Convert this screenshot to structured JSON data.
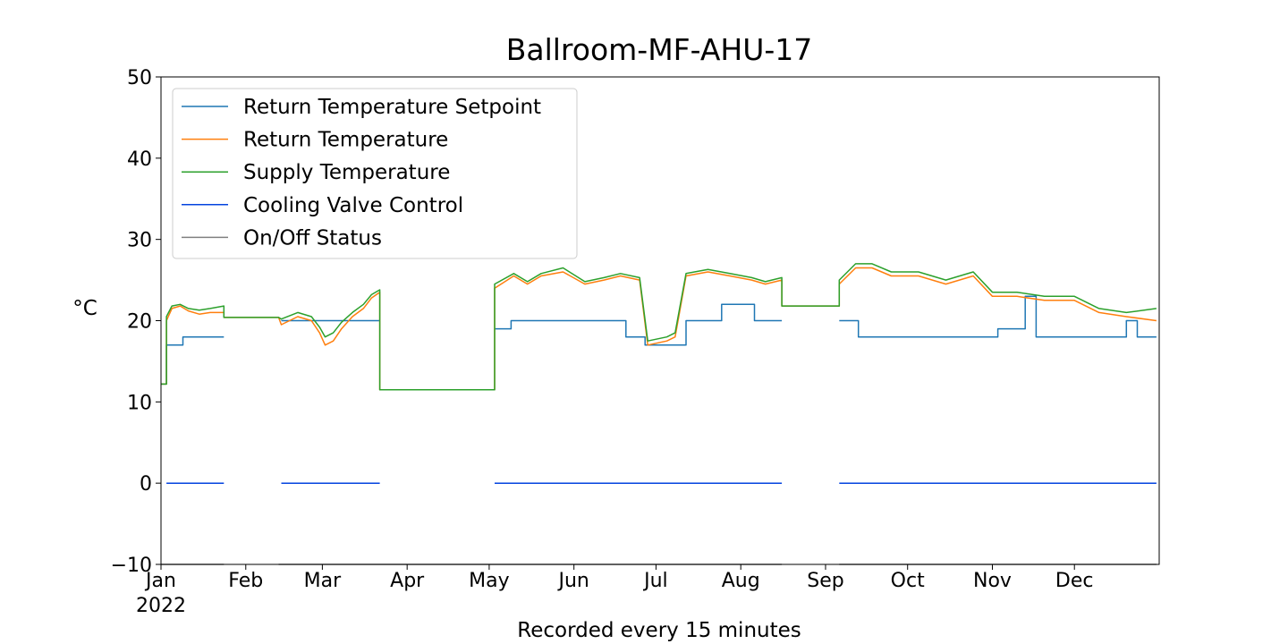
{
  "chart_data": {
    "type": "line",
    "title": "Ballroom-MF-AHU-17",
    "xlabel": "Recorded every 15 minutes",
    "ylabel": "°C",
    "ylim": [
      -10,
      50
    ],
    "xlim": [
      "2022-01-01",
      "2022-12-31"
    ],
    "yticks": [
      -10,
      0,
      10,
      20,
      30,
      40,
      50
    ],
    "xticks": [
      {
        "date": "2022-01-01",
        "label": "Jan",
        "sublabel": "2022"
      },
      {
        "date": "2022-02-01",
        "label": "Feb"
      },
      {
        "date": "2022-03-01",
        "label": "Mar"
      },
      {
        "date": "2022-04-01",
        "label": "Apr"
      },
      {
        "date": "2022-05-01",
        "label": "May"
      },
      {
        "date": "2022-06-01",
        "label": "Jun"
      },
      {
        "date": "2022-07-01",
        "label": "Jul"
      },
      {
        "date": "2022-08-01",
        "label": "Aug"
      },
      {
        "date": "2022-09-01",
        "label": "Sep"
      },
      {
        "date": "2022-10-01",
        "label": "Oct"
      },
      {
        "date": "2022-11-01",
        "label": "Nov"
      },
      {
        "date": "2022-12-01",
        "label": "Dec"
      }
    ],
    "legend_position": "top-left",
    "grid": false,
    "series": [
      {
        "name": "Return Temperature Setpoint",
        "color": "#1f77b4",
        "points": [
          [
            "2022-01-01",
            12.2
          ],
          [
            "2022-01-03",
            12.2
          ],
          [
            "2022-01-03",
            17.0
          ],
          [
            "2022-01-09",
            17.0
          ],
          [
            "2022-01-09",
            18.0
          ],
          [
            "2022-01-24",
            18.0
          ],
          null,
          [
            "2022-02-14",
            20.0
          ],
          [
            "2022-03-22",
            20.0
          ],
          null,
          [
            "2022-05-03",
            19.0
          ],
          [
            "2022-05-09",
            19.0
          ],
          [
            "2022-05-09",
            20.0
          ],
          [
            "2022-06-20",
            20.0
          ],
          [
            "2022-06-20",
            18.0
          ],
          [
            "2022-06-27",
            18.0
          ],
          [
            "2022-06-27",
            17.0
          ],
          [
            "2022-07-12",
            17.0
          ],
          [
            "2022-07-12",
            20.0
          ],
          [
            "2022-07-25",
            20.0
          ],
          [
            "2022-07-25",
            22.0
          ],
          [
            "2022-08-06",
            22.0
          ],
          [
            "2022-08-06",
            20.0
          ],
          [
            "2022-08-16",
            20.0
          ],
          null,
          [
            "2022-09-06",
            20.0
          ],
          [
            "2022-09-13",
            20.0
          ],
          [
            "2022-09-13",
            18.0
          ],
          [
            "2022-11-03",
            18.0
          ],
          [
            "2022-11-03",
            19.0
          ],
          [
            "2022-11-13",
            19.0
          ],
          [
            "2022-11-13",
            23.0
          ],
          [
            "2022-11-17",
            23.0
          ],
          [
            "2022-11-17",
            18.0
          ],
          [
            "2022-12-20",
            18.0
          ],
          [
            "2022-12-20",
            20.0
          ],
          [
            "2022-12-24",
            20.0
          ],
          [
            "2022-12-24",
            18.0
          ],
          [
            "2022-12-31",
            18.0
          ]
        ]
      },
      {
        "name": "Return Temperature",
        "color": "#ff7f0e",
        "points": [
          [
            "2022-01-01",
            12.2
          ],
          [
            "2022-01-03",
            12.2
          ],
          [
            "2022-01-03",
            20.0
          ],
          [
            "2022-01-05",
            21.5
          ],
          [
            "2022-01-08",
            21.8
          ],
          [
            "2022-01-11",
            21.2
          ],
          [
            "2022-01-15",
            20.8
          ],
          [
            "2022-01-19",
            21.0
          ],
          [
            "2022-01-24",
            21.0
          ],
          [
            "2022-01-24",
            20.4
          ],
          [
            "2022-02-13",
            20.4
          ],
          [
            "2022-02-14",
            19.5
          ],
          [
            "2022-02-20",
            20.5
          ],
          [
            "2022-02-25",
            20.0
          ],
          [
            "2022-02-28",
            18.5
          ],
          [
            "2022-03-02",
            17.0
          ],
          [
            "2022-03-05",
            17.5
          ],
          [
            "2022-03-08",
            19.0
          ],
          [
            "2022-03-12",
            20.5
          ],
          [
            "2022-03-16",
            21.5
          ],
          [
            "2022-03-19",
            22.8
          ],
          [
            "2022-03-22",
            23.5
          ],
          [
            "2022-03-22",
            11.5
          ],
          [
            "2022-05-03",
            11.5
          ],
          [
            "2022-05-03",
            24.0
          ],
          [
            "2022-05-10",
            25.5
          ],
          [
            "2022-05-15",
            24.5
          ],
          [
            "2022-05-20",
            25.5
          ],
          [
            "2022-05-28",
            26.0
          ],
          [
            "2022-06-05",
            24.5
          ],
          [
            "2022-06-12",
            25.0
          ],
          [
            "2022-06-18",
            25.5
          ],
          [
            "2022-06-25",
            25.0
          ],
          [
            "2022-06-28",
            17.0
          ],
          [
            "2022-07-05",
            17.5
          ],
          [
            "2022-07-08",
            18.0
          ],
          [
            "2022-07-12",
            25.5
          ],
          [
            "2022-07-20",
            26.0
          ],
          [
            "2022-07-28",
            25.5
          ],
          [
            "2022-08-05",
            25.0
          ],
          [
            "2022-08-10",
            24.5
          ],
          [
            "2022-08-16",
            25.0
          ],
          [
            "2022-08-16",
            21.8
          ],
          [
            "2022-09-06",
            21.8
          ],
          [
            "2022-09-06",
            24.5
          ],
          [
            "2022-09-12",
            26.5
          ],
          [
            "2022-09-18",
            26.5
          ],
          [
            "2022-09-25",
            25.5
          ],
          [
            "2022-10-05",
            25.5
          ],
          [
            "2022-10-15",
            24.5
          ],
          [
            "2022-10-25",
            25.5
          ],
          [
            "2022-11-01",
            23.0
          ],
          [
            "2022-11-10",
            23.0
          ],
          [
            "2022-11-20",
            22.5
          ],
          [
            "2022-12-01",
            22.5
          ],
          [
            "2022-12-10",
            21.0
          ],
          [
            "2022-12-20",
            20.5
          ],
          [
            "2022-12-31",
            20.0
          ]
        ]
      },
      {
        "name": "Supply Temperature",
        "color": "#2ca02c",
        "points": [
          [
            "2022-01-01",
            12.2
          ],
          [
            "2022-01-03",
            12.2
          ],
          [
            "2022-01-03",
            20.5
          ],
          [
            "2022-01-05",
            21.8
          ],
          [
            "2022-01-08",
            22.0
          ],
          [
            "2022-01-11",
            21.5
          ],
          [
            "2022-01-15",
            21.3
          ],
          [
            "2022-01-19",
            21.5
          ],
          [
            "2022-01-24",
            21.8
          ],
          [
            "2022-01-24",
            20.4
          ],
          [
            "2022-02-13",
            20.4
          ],
          [
            "2022-02-14",
            20.2
          ],
          [
            "2022-02-20",
            21.0
          ],
          [
            "2022-02-25",
            20.5
          ],
          [
            "2022-02-28",
            19.2
          ],
          [
            "2022-03-02",
            18.0
          ],
          [
            "2022-03-05",
            18.5
          ],
          [
            "2022-03-08",
            19.8
          ],
          [
            "2022-03-12",
            21.0
          ],
          [
            "2022-03-16",
            22.0
          ],
          [
            "2022-03-19",
            23.2
          ],
          [
            "2022-03-22",
            23.8
          ],
          [
            "2022-03-22",
            11.5
          ],
          [
            "2022-05-03",
            11.5
          ],
          [
            "2022-05-03",
            24.5
          ],
          [
            "2022-05-10",
            25.8
          ],
          [
            "2022-05-15",
            24.8
          ],
          [
            "2022-05-20",
            25.8
          ],
          [
            "2022-05-28",
            26.5
          ],
          [
            "2022-06-05",
            24.8
          ],
          [
            "2022-06-12",
            25.3
          ],
          [
            "2022-06-18",
            25.8
          ],
          [
            "2022-06-25",
            25.3
          ],
          [
            "2022-06-28",
            17.5
          ],
          [
            "2022-07-05",
            18.0
          ],
          [
            "2022-07-08",
            18.5
          ],
          [
            "2022-07-12",
            25.8
          ],
          [
            "2022-07-20",
            26.3
          ],
          [
            "2022-07-28",
            25.8
          ],
          [
            "2022-08-05",
            25.3
          ],
          [
            "2022-08-10",
            24.8
          ],
          [
            "2022-08-16",
            25.3
          ],
          [
            "2022-08-16",
            21.8
          ],
          [
            "2022-09-06",
            21.8
          ],
          [
            "2022-09-06",
            25.0
          ],
          [
            "2022-09-12",
            27.0
          ],
          [
            "2022-09-18",
            27.0
          ],
          [
            "2022-09-25",
            26.0
          ],
          [
            "2022-10-05",
            26.0
          ],
          [
            "2022-10-15",
            25.0
          ],
          [
            "2022-10-25",
            26.0
          ],
          [
            "2022-11-01",
            23.5
          ],
          [
            "2022-11-10",
            23.5
          ],
          [
            "2022-11-20",
            23.0
          ],
          [
            "2022-12-01",
            23.0
          ],
          [
            "2022-12-10",
            21.5
          ],
          [
            "2022-12-20",
            21.0
          ],
          [
            "2022-12-31",
            21.5
          ]
        ]
      },
      {
        "name": "Cooling Valve Control",
        "color": "#0343df",
        "points": [
          [
            "2022-01-03",
            0
          ],
          [
            "2022-01-24",
            0
          ],
          null,
          [
            "2022-02-14",
            0
          ],
          [
            "2022-03-22",
            0
          ],
          null,
          [
            "2022-05-03",
            0
          ],
          [
            "2022-08-16",
            0
          ],
          null,
          [
            "2022-09-06",
            0
          ],
          [
            "2022-12-31",
            0
          ]
        ]
      },
      {
        "name": "On/Off Status",
        "color": "#808080",
        "points": [
          [
            "2022-01-01",
            -10
          ],
          [
            "2022-01-24",
            -10
          ],
          null,
          [
            "2022-02-13",
            -10
          ],
          [
            "2022-08-16",
            -10
          ],
          null,
          [
            "2022-09-06",
            -10
          ],
          [
            "2022-12-31",
            -10
          ]
        ]
      }
    ]
  }
}
